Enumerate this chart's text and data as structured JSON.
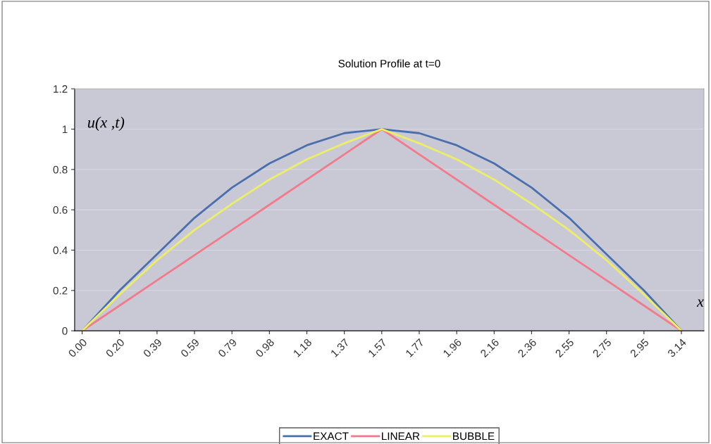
{
  "chart_data": {
    "type": "line",
    "title": "Solution Profile at t=0",
    "xlabel": "x",
    "ylabel": "u(x ,t)",
    "categories": [
      "0.00",
      "0.20",
      "0.39",
      "0.59",
      "0.79",
      "0.98",
      "1.18",
      "1.37",
      "1.57",
      "1.77",
      "1.96",
      "2.16",
      "2.36",
      "2.55",
      "2.75",
      "2.95",
      "3.14"
    ],
    "series": [
      {
        "name": "EXACT",
        "color": "#4a6fae",
        "values": [
          0,
          0.2,
          0.38,
          0.56,
          0.71,
          0.83,
          0.92,
          0.98,
          1,
          0.98,
          0.92,
          0.83,
          0.71,
          0.56,
          0.38,
          0.2,
          0
        ]
      },
      {
        "name": "LINEAR",
        "color": "#f27a8a",
        "values": [
          0,
          0.125,
          0.25,
          0.375,
          0.5,
          0.625,
          0.75,
          0.875,
          1,
          0.875,
          0.75,
          0.625,
          0.5,
          0.375,
          0.25,
          0.125,
          0
        ]
      },
      {
        "name": "BUBBLE",
        "color": "#eeee66",
        "values": [
          0,
          0.18,
          0.35,
          0.5,
          0.63,
          0.75,
          0.85,
          0.93,
          1,
          0.93,
          0.85,
          0.75,
          0.63,
          0.5,
          0.35,
          0.18,
          0
        ]
      }
    ],
    "ylim": [
      0,
      1.2
    ],
    "yticks": [
      0,
      0.2,
      0.4,
      0.6,
      0.8,
      1,
      1.2
    ],
    "grid": "y",
    "legend": "bottom",
    "marker": "none",
    "line_style": "solid"
  }
}
